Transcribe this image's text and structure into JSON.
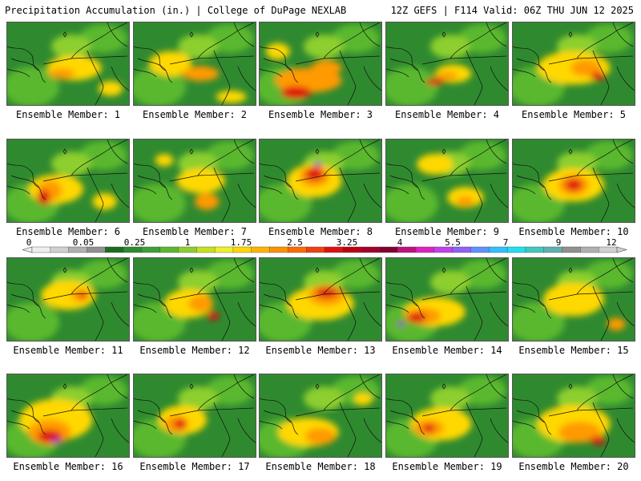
{
  "header": {
    "title_left": "Precipitation Accumulation (in.) | College of DuPage NEXLAB",
    "title_right": "12Z GEFS | F114 Valid: 06Z THU JUN 12 2025"
  },
  "members": [
    {
      "label": "Ensemble Member: 1",
      "blobs": [
        [
          0.55,
          0.55,
          0.45,
          0.3,
          "#ffd800"
        ],
        [
          0.45,
          0.62,
          0.22,
          0.12,
          "#ff9a00"
        ],
        [
          0.85,
          0.8,
          0.2,
          0.18,
          "#ffd800"
        ]
      ]
    },
    {
      "label": "Ensemble Member: 2",
      "blobs": [
        [
          0.3,
          0.5,
          0.35,
          0.3,
          "#ffd800"
        ],
        [
          0.55,
          0.62,
          0.3,
          0.18,
          "#ff9a00"
        ],
        [
          0.8,
          0.9,
          0.25,
          0.15,
          "#ffd800"
        ]
      ]
    },
    {
      "label": "Ensemble Member: 3",
      "blobs": [
        [
          0.4,
          0.7,
          0.55,
          0.3,
          "#ff9a00"
        ],
        [
          0.3,
          0.85,
          0.25,
          0.15,
          "#e01010"
        ],
        [
          0.55,
          0.55,
          0.25,
          0.18,
          "#ff9a00"
        ],
        [
          0.15,
          0.35,
          0.2,
          0.2,
          "#ffd800"
        ]
      ]
    },
    {
      "label": "Ensemble Member: 4",
      "blobs": [
        [
          0.55,
          0.62,
          0.3,
          0.22,
          "#ffd800"
        ],
        [
          0.5,
          0.65,
          0.18,
          0.1,
          "#ff9a00"
        ],
        [
          0.4,
          0.72,
          0.15,
          0.08,
          "#e01010"
        ]
      ]
    },
    {
      "label": "Ensemble Member: 5",
      "blobs": [
        [
          0.5,
          0.55,
          0.6,
          0.4,
          "#ffd800"
        ],
        [
          0.6,
          0.55,
          0.25,
          0.2,
          "#ff9a00"
        ],
        [
          0.7,
          0.65,
          0.12,
          0.1,
          "#e01010"
        ]
      ]
    },
    {
      "label": "Ensemble Member: 6",
      "blobs": [
        [
          0.4,
          0.6,
          0.45,
          0.35,
          "#ffd800"
        ],
        [
          0.35,
          0.62,
          0.2,
          0.25,
          "#ff9a00"
        ],
        [
          0.3,
          0.7,
          0.1,
          0.18,
          "#e01010"
        ],
        [
          0.8,
          0.75,
          0.2,
          0.2,
          "#ffd800"
        ]
      ]
    },
    {
      "label": "Ensemble Member: 7",
      "blobs": [
        [
          0.55,
          0.5,
          0.4,
          0.3,
          "#ffd800"
        ],
        [
          0.6,
          0.75,
          0.2,
          0.2,
          "#ff9a00"
        ],
        [
          0.25,
          0.25,
          0.15,
          0.15,
          "#ffd800"
        ]
      ]
    },
    {
      "label": "Ensemble Member: 8",
      "blobs": [
        [
          0.45,
          0.5,
          0.45,
          0.4,
          "#ffd800"
        ],
        [
          0.45,
          0.45,
          0.25,
          0.25,
          "#ff9a00"
        ],
        [
          0.45,
          0.42,
          0.15,
          0.15,
          "#e01010"
        ],
        [
          0.48,
          0.3,
          0.06,
          0.06,
          "#a020c0"
        ]
      ]
    },
    {
      "label": "Ensemble Member: 9",
      "blobs": [
        [
          0.4,
          0.3,
          0.3,
          0.25,
          "#ffd800"
        ],
        [
          0.65,
          0.7,
          0.3,
          0.25,
          "#ffd800"
        ],
        [
          0.65,
          0.75,
          0.15,
          0.12,
          "#ff9a00"
        ]
      ]
    },
    {
      "label": "Ensemble Member: 10",
      "blobs": [
        [
          0.5,
          0.55,
          0.5,
          0.4,
          "#ffd800"
        ],
        [
          0.5,
          0.55,
          0.25,
          0.25,
          "#ff9a00"
        ],
        [
          0.5,
          0.55,
          0.14,
          0.14,
          "#e01010"
        ]
      ]
    },
    {
      "label": "Ensemble Member: 11",
      "blobs": [
        [
          0.5,
          0.45,
          0.45,
          0.35,
          "#ffd800"
        ],
        [
          0.6,
          0.45,
          0.15,
          0.15,
          "#ff9a00"
        ],
        [
          0.62,
          0.45,
          0.07,
          0.07,
          "#e01010"
        ]
      ]
    },
    {
      "label": "Ensemble Member: 12",
      "blobs": [
        [
          0.45,
          0.55,
          0.4,
          0.35,
          "#ffd800"
        ],
        [
          0.55,
          0.55,
          0.2,
          0.2,
          "#ff9a00"
        ],
        [
          0.65,
          0.7,
          0.1,
          0.1,
          "#e01010"
        ]
      ]
    },
    {
      "label": "Ensemble Member: 13",
      "blobs": [
        [
          0.5,
          0.55,
          0.55,
          0.4,
          "#ffd800"
        ],
        [
          0.55,
          0.45,
          0.3,
          0.25,
          "#ff9a00"
        ],
        [
          0.55,
          0.42,
          0.18,
          0.12,
          "#e01010"
        ]
      ]
    },
    {
      "label": "Ensemble Member: 14",
      "blobs": [
        [
          0.4,
          0.65,
          0.5,
          0.35,
          "#ffd800"
        ],
        [
          0.3,
          0.7,
          0.3,
          0.2,
          "#ff9a00"
        ],
        [
          0.25,
          0.72,
          0.15,
          0.12,
          "#e01010"
        ],
        [
          0.12,
          0.8,
          0.07,
          0.05,
          "#a020c0"
        ]
      ]
    },
    {
      "label": "Ensemble Member: 15",
      "blobs": [
        [
          0.5,
          0.5,
          0.5,
          0.4,
          "#ffd800"
        ],
        [
          0.85,
          0.8,
          0.15,
          0.15,
          "#ff9a00"
        ]
      ]
    },
    {
      "label": "Ensemble Member: 16",
      "blobs": [
        [
          0.4,
          0.55,
          0.6,
          0.5,
          "#ffd800"
        ],
        [
          0.35,
          0.7,
          0.35,
          0.3,
          "#ff9a00"
        ],
        [
          0.35,
          0.75,
          0.2,
          0.15,
          "#e01010"
        ],
        [
          0.4,
          0.8,
          0.08,
          0.06,
          "#a020c0"
        ]
      ]
    },
    {
      "label": "Ensemble Member: 17",
      "blobs": [
        [
          0.4,
          0.55,
          0.4,
          0.35,
          "#ffd800"
        ],
        [
          0.35,
          0.6,
          0.2,
          0.2,
          "#ff9a00"
        ],
        [
          0.38,
          0.6,
          0.1,
          0.12,
          "#e01010"
        ]
      ]
    },
    {
      "label": "Ensemble Member: 18",
      "blobs": [
        [
          0.4,
          0.7,
          0.5,
          0.35,
          "#ffd800"
        ],
        [
          0.5,
          0.75,
          0.25,
          0.2,
          "#ff9a00"
        ],
        [
          0.85,
          0.3,
          0.15,
          0.15,
          "#ffd800"
        ]
      ]
    },
    {
      "label": "Ensemble Member: 19",
      "blobs": [
        [
          0.45,
          0.6,
          0.5,
          0.4,
          "#ffd800"
        ],
        [
          0.35,
          0.65,
          0.25,
          0.2,
          "#ff9a00"
        ],
        [
          0.35,
          0.65,
          0.1,
          0.1,
          "#e01010"
        ]
      ]
    },
    {
      "label": "Ensemble Member: 20",
      "blobs": [
        [
          0.5,
          0.6,
          0.6,
          0.45,
          "#ffd800"
        ],
        [
          0.55,
          0.7,
          0.35,
          0.25,
          "#ff9a00"
        ],
        [
          0.7,
          0.8,
          0.12,
          0.1,
          "#e01010"
        ]
      ]
    }
  ],
  "colorbar": {
    "labels": [
      "0",
      "0.05",
      "0.25",
      "1",
      "1.75",
      "2.5",
      "3.25",
      "4",
      "5.5",
      "7",
      "9",
      "12"
    ],
    "colors": [
      "#eeeeee",
      "#d0d0d0",
      "#b0b0b0",
      "#909090",
      "#1e6b1e",
      "#2e8b2e",
      "#3aa03a",
      "#5ab82e",
      "#8ccf2e",
      "#c8e020",
      "#f0f028",
      "#ffd800",
      "#ffb400",
      "#ff9000",
      "#ff6a00",
      "#f04010",
      "#e01010",
      "#c00010",
      "#a0002a",
      "#800030",
      "#c01080",
      "#e020c0",
      "#c040f0",
      "#9060f8",
      "#6090ff",
      "#30c0ff",
      "#20e0f0",
      "#40c8c0",
      "#60b0b0",
      "#909090",
      "#b0b0b0",
      "#d0d0d0"
    ]
  }
}
